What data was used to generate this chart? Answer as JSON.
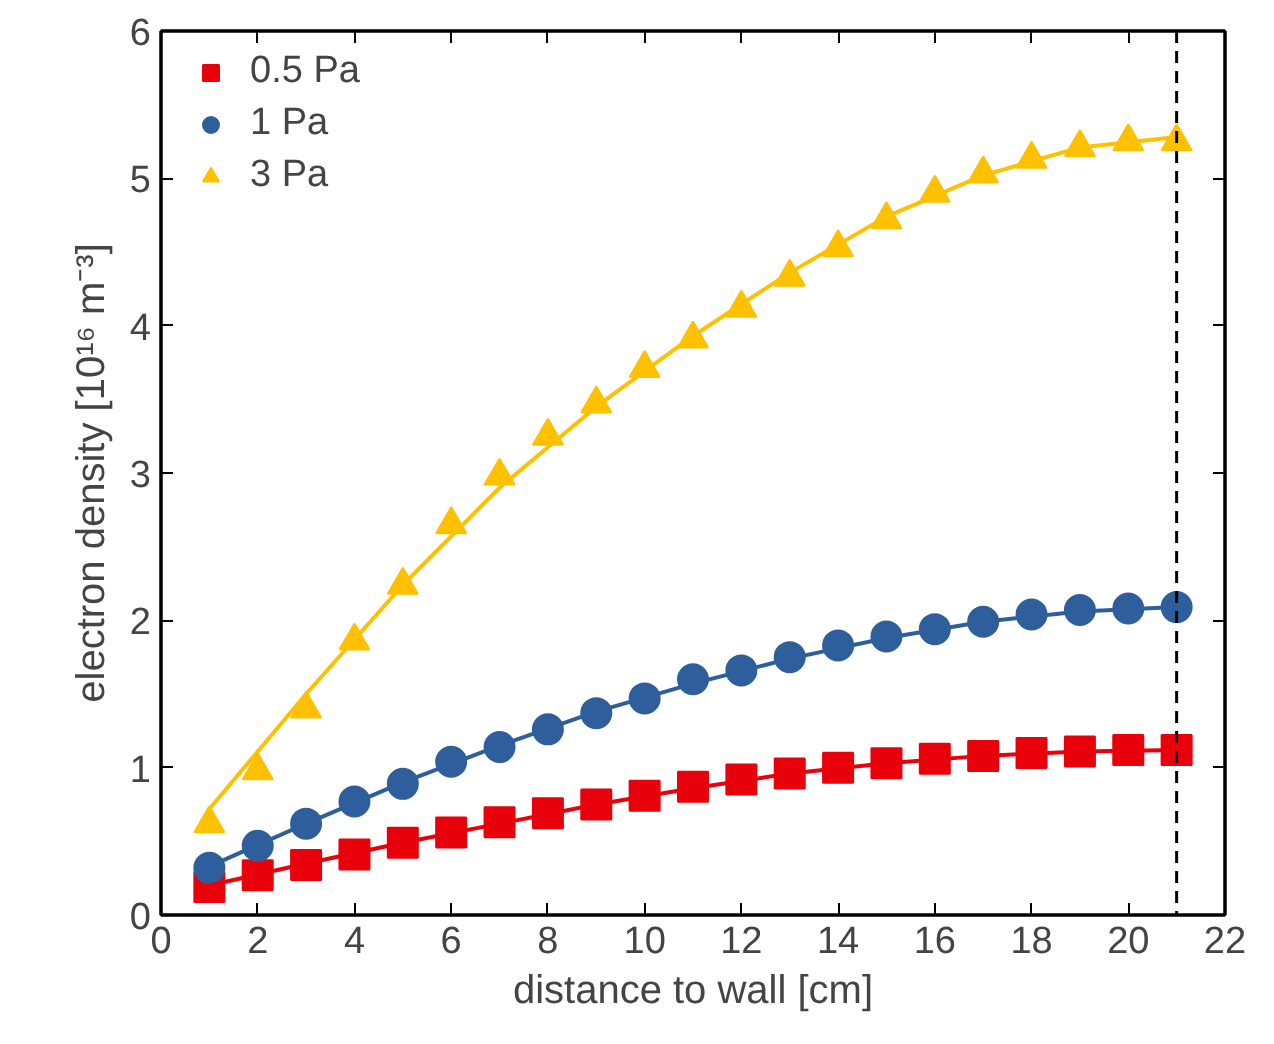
{
  "chart_data": {
    "type": "scatter",
    "xlabel": "distance to wall [cm]",
    "ylabel": "electron density [10¹⁶ m⁻³]",
    "xlim": [
      0,
      22
    ],
    "xticks": [
      0,
      2,
      4,
      6,
      8,
      10,
      12,
      14,
      16,
      18,
      20,
      22
    ],
    "ylim": [
      0,
      6
    ],
    "yticks": [
      0,
      1,
      2,
      3,
      4,
      5,
      6
    ],
    "x": [
      1,
      2,
      3,
      4,
      5,
      6,
      7,
      8,
      9,
      10,
      11,
      12,
      13,
      14,
      15,
      16,
      17,
      18,
      19,
      20,
      21
    ],
    "grid": false,
    "legend": "top left",
    "series": [
      {
        "name": "0.5 Pa",
        "color": "#e8000b",
        "marker": "square",
        "values": [
          0.19,
          0.27,
          0.34,
          0.41,
          0.49,
          0.56,
          0.63,
          0.69,
          0.75,
          0.81,
          0.87,
          0.92,
          0.96,
          1.0,
          1.03,
          1.06,
          1.08,
          1.1,
          1.11,
          1.12,
          1.12
        ]
      },
      {
        "name": "1 Pa",
        "color": "#2e5f9c",
        "marker": "circle",
        "values": [
          0.32,
          0.47,
          0.62,
          0.77,
          0.89,
          1.04,
          1.14,
          1.26,
          1.37,
          1.47,
          1.6,
          1.66,
          1.75,
          1.83,
          1.89,
          1.94,
          1.99,
          2.04,
          2.07,
          2.08,
          2.09
        ]
      },
      {
        "name": "3 Pa",
        "color": "#ffc000",
        "marker": "triangle",
        "values": [
          0.62,
          0.98,
          1.4,
          1.86,
          2.24,
          2.65,
          2.98,
          3.25,
          3.47,
          3.71,
          3.91,
          4.12,
          4.33,
          4.53,
          4.72,
          4.9,
          5.03,
          5.13,
          5.21,
          5.25,
          5.25
        ]
      },
      {
        "type": "line",
        "color": "#e8000b",
        "x": [
          1,
          3,
          5,
          7,
          9,
          11,
          13,
          15,
          17,
          19,
          21
        ],
        "values": [
          0.2,
          0.35,
          0.49,
          0.62,
          0.75,
          0.86,
          0.96,
          1.03,
          1.08,
          1.11,
          1.12
        ]
      },
      {
        "type": "line",
        "color": "#2e5f9c",
        "x": [
          1,
          3,
          5,
          7,
          9,
          11,
          13,
          15,
          17,
          19,
          21
        ],
        "values": [
          0.33,
          0.62,
          0.9,
          1.15,
          1.38,
          1.57,
          1.74,
          1.88,
          1.99,
          2.06,
          2.09
        ]
      },
      {
        "type": "line",
        "color": "#ffc000",
        "x": [
          1,
          3,
          5,
          7,
          9,
          11,
          13,
          15,
          17,
          19,
          21
        ],
        "values": [
          0.72,
          1.5,
          2.24,
          2.9,
          3.45,
          3.93,
          4.36,
          4.74,
          5.02,
          5.21,
          5.28
        ]
      }
    ],
    "ref_lines": [
      {
        "axis": "x",
        "value": 21,
        "color": "#000000",
        "line_style": "dashed"
      }
    ]
  }
}
